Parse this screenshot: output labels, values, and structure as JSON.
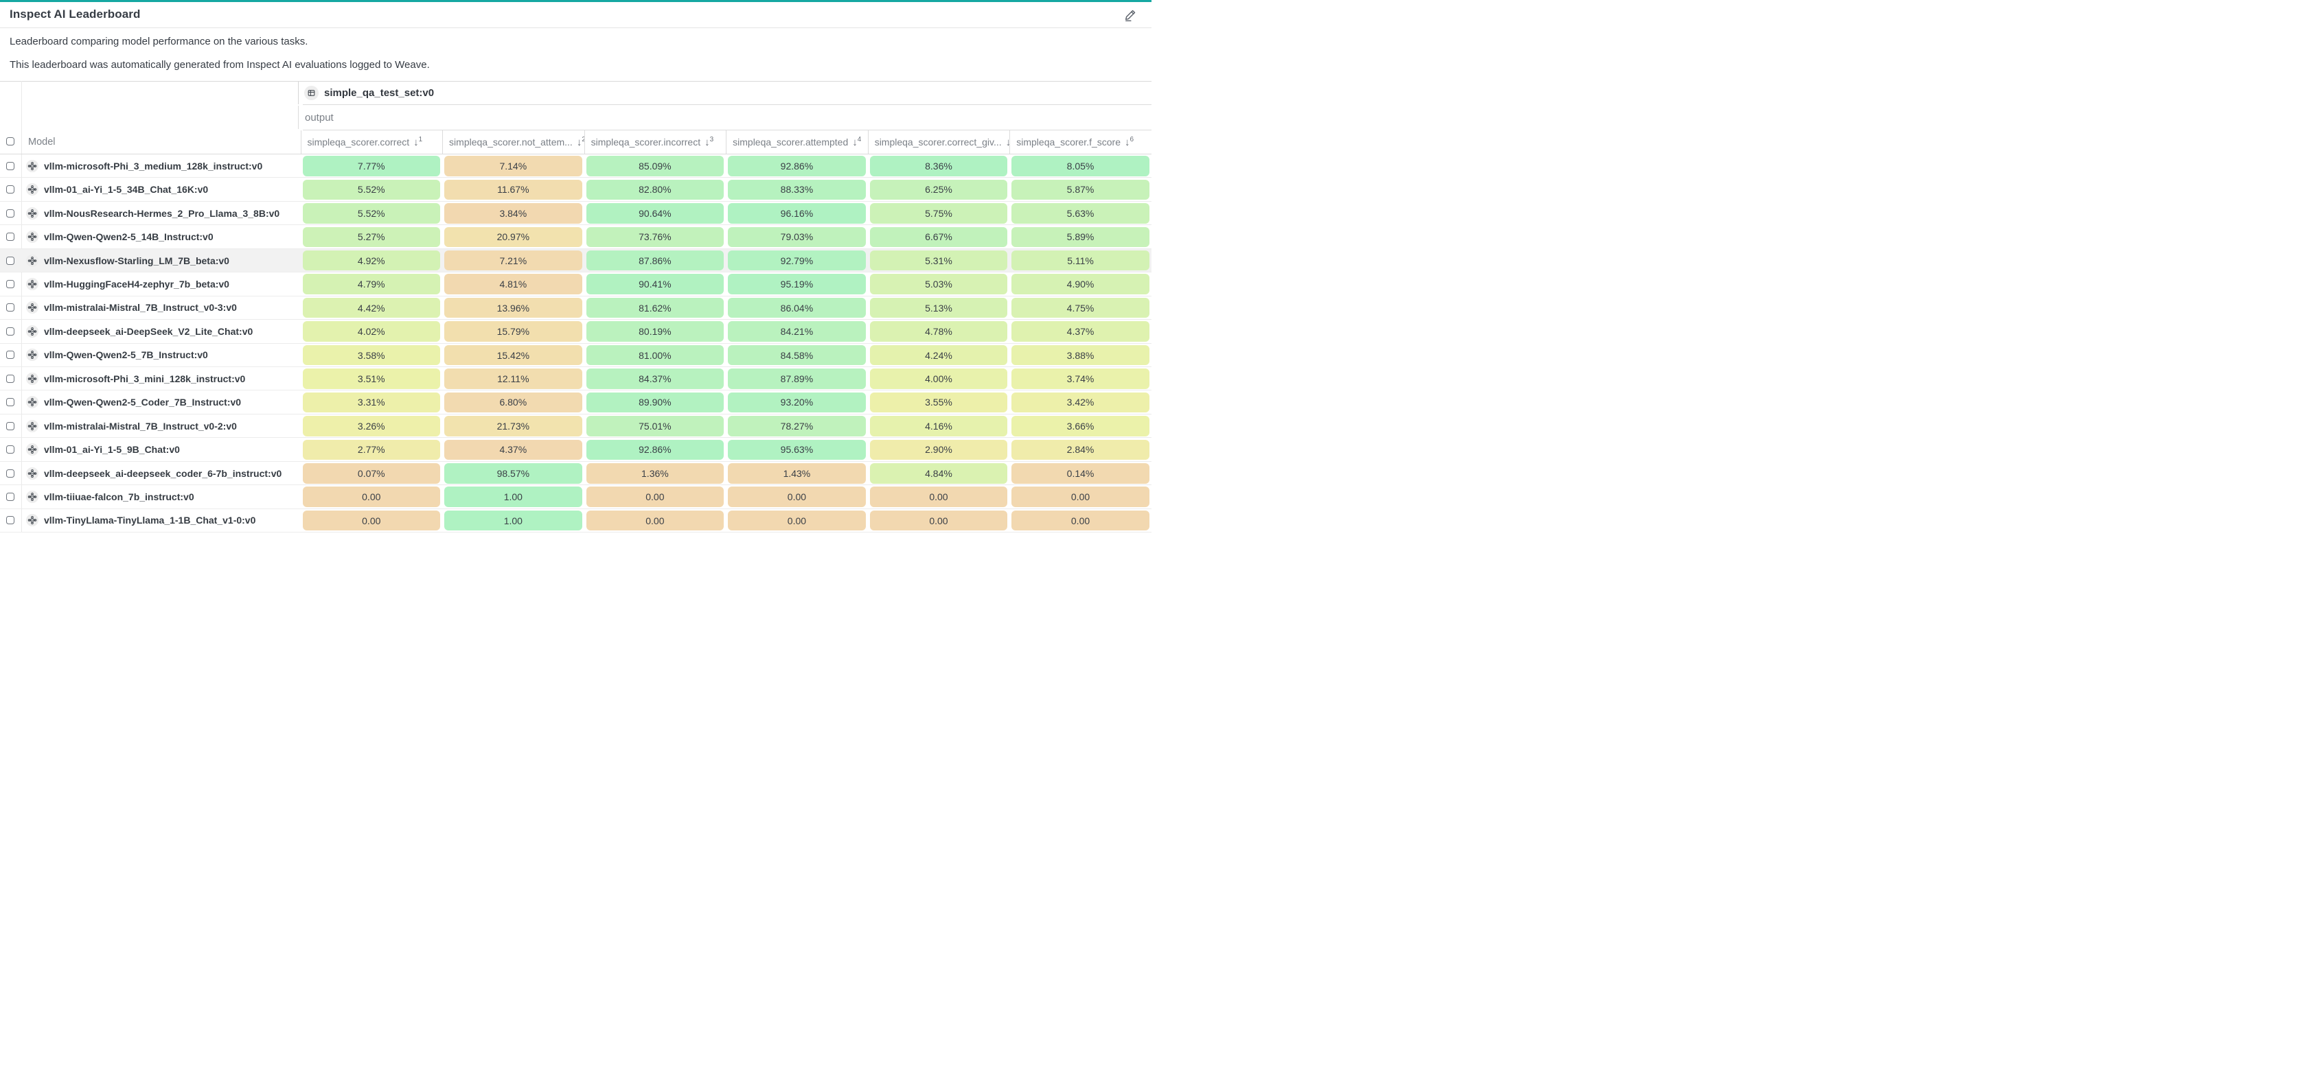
{
  "page": {
    "title": "Inspect AI Leaderboard",
    "accent_color": "#16a8a2",
    "description_lines": [
      "Leaderboard comparing model performance on the various tasks.",
      "This leaderboard was automatically generated from Inspect AI evaluations logged to Weave."
    ]
  },
  "table": {
    "group_header": {
      "label": "simple_qa_test_set:v0",
      "icon": "table-icon"
    },
    "subgroup_label": "output",
    "model_column_label": "Model",
    "columns": [
      {
        "label": "simpleqa_scorer.correct",
        "sort_order": "1"
      },
      {
        "label": "simpleqa_scorer.not_attem...",
        "sort_order": "2"
      },
      {
        "label": "simpleqa_scorer.incorrect",
        "sort_order": "3"
      },
      {
        "label": "simpleqa_scorer.attempted",
        "sort_order": "4"
      },
      {
        "label": "simpleqa_scorer.correct_giv...",
        "sort_order": "5"
      },
      {
        "label": "simpleqa_scorer.f_score",
        "sort_order": "6"
      }
    ],
    "rows": [
      {
        "model": "vllm-microsoft-Phi_3_medium_128k_instruct:v0",
        "highlighted": false,
        "cells": [
          {
            "value": "7.77%",
            "color": "#aff2c2"
          },
          {
            "value": "7.14%",
            "color": "#f2dab0"
          },
          {
            "value": "85.09%",
            "color": "#b7f2bf"
          },
          {
            "value": "92.86%",
            "color": "#b2f2c1"
          },
          {
            "value": "8.36%",
            "color": "#aff2c2"
          },
          {
            "value": "8.05%",
            "color": "#aff2c2"
          }
        ]
      },
      {
        "model": "vllm-01_ai-Yi_1-5_34B_Chat_16K:v0",
        "highlighted": false,
        "cells": [
          {
            "value": "5.52%",
            "color": "#c9f2b8"
          },
          {
            "value": "11.67%",
            "color": "#f2ddaf"
          },
          {
            "value": "82.80%",
            "color": "#b9f2be"
          },
          {
            "value": "88.33%",
            "color": "#b6f2bf"
          },
          {
            "value": "6.25%",
            "color": "#c6f2ba"
          },
          {
            "value": "5.87%",
            "color": "#c7f2b9"
          }
        ]
      },
      {
        "model": "vllm-NousResearch-Hermes_2_Pro_Llama_3_8B:v0",
        "highlighted": false,
        "cells": [
          {
            "value": "5.52%",
            "color": "#c9f2b8"
          },
          {
            "value": "3.84%",
            "color": "#f2d8b0"
          },
          {
            "value": "90.64%",
            "color": "#b1f2c1"
          },
          {
            "value": "96.16%",
            "color": "#aff2c2"
          },
          {
            "value": "5.75%",
            "color": "#ccf2b7"
          },
          {
            "value": "5.63%",
            "color": "#caf2b8"
          }
        ]
      },
      {
        "model": "vllm-Qwen-Qwen2-5_14B_Instruct:v0",
        "highlighted": false,
        "cells": [
          {
            "value": "5.27%",
            "color": "#cdf2b7"
          },
          {
            "value": "20.97%",
            "color": "#f2e2ae"
          },
          {
            "value": "73.76%",
            "color": "#c2f2bb"
          },
          {
            "value": "79.03%",
            "color": "#bff2bc"
          },
          {
            "value": "6.67%",
            "color": "#c1f2bb"
          },
          {
            "value": "5.89%",
            "color": "#c7f2b9"
          }
        ]
      },
      {
        "model": "vllm-Nexusflow-Starling_LM_7B_beta:v0",
        "highlighted": true,
        "cells": [
          {
            "value": "4.92%",
            "color": "#d3f2b4"
          },
          {
            "value": "7.21%",
            "color": "#f2dab0"
          },
          {
            "value": "87.86%",
            "color": "#b4f2c0"
          },
          {
            "value": "92.79%",
            "color": "#b2f2c1"
          },
          {
            "value": "5.31%",
            "color": "#d3f2b4"
          },
          {
            "value": "5.11%",
            "color": "#d3f2b4"
          }
        ]
      },
      {
        "model": "vllm-HuggingFaceH4-zephyr_7b_beta:v0",
        "highlighted": false,
        "cells": [
          {
            "value": "4.79%",
            "color": "#d5f2b3"
          },
          {
            "value": "4.81%",
            "color": "#f2d9b0"
          },
          {
            "value": "90.41%",
            "color": "#b1f2c1"
          },
          {
            "value": "95.19%",
            "color": "#b0f2c2"
          },
          {
            "value": "5.03%",
            "color": "#d7f2b3"
          },
          {
            "value": "4.90%",
            "color": "#d6f2b3"
          }
        ]
      },
      {
        "model": "vllm-mistralai-Mistral_7B_Instruct_v0-3:v0",
        "highlighted": false,
        "cells": [
          {
            "value": "4.42%",
            "color": "#dcf2b1"
          },
          {
            "value": "13.96%",
            "color": "#f2deaf"
          },
          {
            "value": "81.62%",
            "color": "#baf2be"
          },
          {
            "value": "86.04%",
            "color": "#b8f2bf"
          },
          {
            "value": "5.13%",
            "color": "#d6f2b3"
          },
          {
            "value": "4.75%",
            "color": "#d9f2b2"
          }
        ]
      },
      {
        "model": "vllm-deepseek_ai-DeepSeek_V2_Lite_Chat:v0",
        "highlighted": false,
        "cells": [
          {
            "value": "4.02%",
            "color": "#e3f2ae"
          },
          {
            "value": "15.79%",
            "color": "#f2dfae"
          },
          {
            "value": "80.19%",
            "color": "#bbf2be"
          },
          {
            "value": "84.21%",
            "color": "#baf2be"
          },
          {
            "value": "4.78%",
            "color": "#dbf2b1"
          },
          {
            "value": "4.37%",
            "color": "#dff2af"
          }
        ]
      },
      {
        "model": "vllm-Qwen-Qwen2-5_7B_Instruct:v0",
        "highlighted": false,
        "cells": [
          {
            "value": "3.58%",
            "color": "#eaf2ab"
          },
          {
            "value": "15.42%",
            "color": "#f2dfae"
          },
          {
            "value": "81.00%",
            "color": "#baf2be"
          },
          {
            "value": "84.58%",
            "color": "#baf2be"
          },
          {
            "value": "4.24%",
            "color": "#e4f2ad"
          },
          {
            "value": "3.88%",
            "color": "#e8f2ac"
          }
        ]
      },
      {
        "model": "vllm-microsoft-Phi_3_mini_128k_instruct:v0",
        "highlighted": false,
        "cells": [
          {
            "value": "3.51%",
            "color": "#ebf2aa"
          },
          {
            "value": "12.11%",
            "color": "#f2ddaf"
          },
          {
            "value": "84.37%",
            "color": "#b7f2bf"
          },
          {
            "value": "87.89%",
            "color": "#b7f2bf"
          },
          {
            "value": "4.00%",
            "color": "#e8f2ac"
          },
          {
            "value": "3.74%",
            "color": "#eaf2ab"
          }
        ]
      },
      {
        "model": "vllm-Qwen-Qwen2-5_Coder_7B_Instruct:v0",
        "highlighted": false,
        "cells": [
          {
            "value": "3.31%",
            "color": "#edf0aa"
          },
          {
            "value": "6.80%",
            "color": "#f2dab0"
          },
          {
            "value": "89.90%",
            "color": "#b2f2c1"
          },
          {
            "value": "93.20%",
            "color": "#b2f2c1"
          },
          {
            "value": "3.55%",
            "color": "#edf0aa"
          },
          {
            "value": "3.42%",
            "color": "#edf0aa"
          }
        ]
      },
      {
        "model": "vllm-mistralai-Mistral_7B_Instruct_v0-2:v0",
        "highlighted": false,
        "cells": [
          {
            "value": "3.26%",
            "color": "#eef0aa"
          },
          {
            "value": "21.73%",
            "color": "#f2e3ae"
          },
          {
            "value": "75.01%",
            "color": "#c0f2bc"
          },
          {
            "value": "78.27%",
            "color": "#c0f2bc"
          },
          {
            "value": "4.16%",
            "color": "#e6f2ad"
          },
          {
            "value": "3.66%",
            "color": "#ebf2aa"
          }
        ]
      },
      {
        "model": "vllm-01_ai-Yi_1-5_9B_Chat:v0",
        "highlighted": false,
        "cells": [
          {
            "value": "2.77%",
            "color": "#f0ecab"
          },
          {
            "value": "4.37%",
            "color": "#f2d8b0"
          },
          {
            "value": "92.86%",
            "color": "#aff2c2"
          },
          {
            "value": "95.63%",
            "color": "#b0f2c2"
          },
          {
            "value": "2.90%",
            "color": "#f0ecab"
          },
          {
            "value": "2.84%",
            "color": "#f0ecab"
          }
        ]
      },
      {
        "model": "vllm-deepseek_ai-deepseek_coder_6-7b_instruct:v0",
        "highlighted": false,
        "cells": [
          {
            "value": "0.07%",
            "color": "#f2d8b0"
          },
          {
            "value": "98.57%",
            "color": "#b0f2c2"
          },
          {
            "value": "1.36%",
            "color": "#f2d9b0"
          },
          {
            "value": "1.43%",
            "color": "#f2d9b0"
          },
          {
            "value": "4.84%",
            "color": "#daf2b1"
          },
          {
            "value": "0.14%",
            "color": "#f2d9b0"
          }
        ]
      },
      {
        "model": "vllm-tiiuae-falcon_7b_instruct:v0",
        "highlighted": false,
        "cells": [
          {
            "value": "0.00",
            "color": "#f2d8b0"
          },
          {
            "value": "1.00",
            "color": "#aff2c2"
          },
          {
            "value": "0.00",
            "color": "#f2d8b0"
          },
          {
            "value": "0.00",
            "color": "#f2d8b0"
          },
          {
            "value": "0.00",
            "color": "#f2d8b0"
          },
          {
            "value": "0.00",
            "color": "#f2d8b0"
          }
        ]
      },
      {
        "model": "vllm-TinyLlama-TinyLlama_1-1B_Chat_v1-0:v0",
        "highlighted": false,
        "cells": [
          {
            "value": "0.00",
            "color": "#f2d8b0"
          },
          {
            "value": "1.00",
            "color": "#aff2c2"
          },
          {
            "value": "0.00",
            "color": "#f2d8b0"
          },
          {
            "value": "0.00",
            "color": "#f2d8b0"
          },
          {
            "value": "0.00",
            "color": "#f2d8b0"
          },
          {
            "value": "0.00",
            "color": "#f2d8b0"
          }
        ]
      }
    ]
  }
}
